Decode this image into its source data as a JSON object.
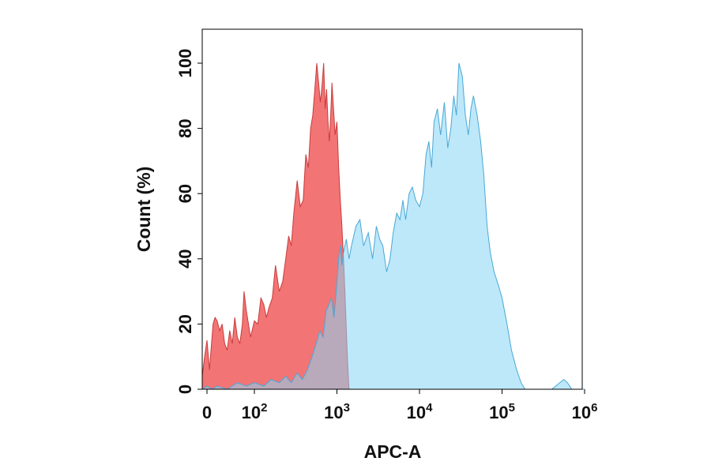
{
  "chart_data": {
    "type": "area",
    "xlabel": "APC-A",
    "ylabel": "Count  (%)",
    "x_scale": "biexponential",
    "xlim": [
      -10,
      1000000
    ],
    "ylim": [
      0,
      110
    ],
    "grid": false,
    "legend": "none",
    "x_ticks": [
      {
        "value": 0,
        "base": "0",
        "exp": ""
      },
      {
        "value": 100,
        "base": "10",
        "exp": "2"
      },
      {
        "value": 1000,
        "base": "10",
        "exp": "3"
      },
      {
        "value": 10000,
        "base": "10",
        "exp": "4"
      },
      {
        "value": 100000,
        "base": "10",
        "exp": "5"
      },
      {
        "value": 1000000,
        "base": "10",
        "exp": "6"
      }
    ],
    "y_ticks": [
      0,
      20,
      40,
      60,
      80,
      100
    ],
    "series": [
      {
        "color": "#f26d6d",
        "stroke": "#c83c3c",
        "x": [
          -10,
          -5,
          0,
          5,
          8,
          12,
          16,
          20,
          25,
          30,
          35,
          40,
          45,
          50,
          55,
          60,
          65,
          70,
          75,
          80,
          90,
          100,
          110,
          120,
          130,
          140,
          150,
          165,
          180,
          200,
          220,
          240,
          260,
          280,
          300,
          330,
          360,
          390,
          420,
          450,
          480,
          510,
          540,
          570,
          600,
          630,
          660,
          690,
          720,
          750,
          780,
          810,
          840,
          870,
          900,
          950,
          1000,
          1050,
          1100,
          1150,
          1200,
          1250,
          1300,
          1350,
          1400
        ],
        "y": [
          4,
          10,
          15,
          6,
          12,
          20,
          22,
          21,
          18,
          20,
          14,
          12,
          18,
          14,
          22,
          16,
          14,
          20,
          30,
          24,
          16,
          21,
          20,
          28,
          26,
          22,
          25,
          28,
          38,
          30,
          33,
          40,
          47,
          44,
          54,
          64,
          56,
          58,
          72,
          68,
          80,
          84,
          92,
          100,
          94,
          88,
          93,
          100,
          86,
          92,
          82,
          76,
          84,
          94,
          88,
          78,
          82,
          68,
          58,
          50,
          40,
          30,
          18,
          8,
          0
        ]
      },
      {
        "color": "#87d5f5",
        "stroke": "#48a8d6",
        "x": [
          -10,
          0,
          10,
          20,
          40,
          60,
          80,
          100,
          130,
          160,
          200,
          240,
          280,
          330,
          380,
          440,
          500,
          560,
          620,
          680,
          740,
          800,
          860,
          920,
          980,
          1050,
          1100,
          1150,
          1200,
          1300,
          1400,
          1500,
          1700,
          1900,
          2100,
          2400,
          2700,
          3000,
          3300,
          3600,
          4000,
          4400,
          4800,
          5300,
          5800,
          6300,
          6800,
          7500,
          8200,
          9000,
          10000,
          11000,
          12000,
          13000,
          14000,
          15000,
          16500,
          18000,
          20000,
          22000,
          24000,
          26000,
          28000,
          30000,
          33000,
          36000,
          39000,
          42000,
          45000,
          50000,
          55000,
          60000,
          66000,
          72000,
          80000,
          90000,
          100000,
          115000,
          130000,
          150000,
          170000,
          190000,
          220000,
          260000,
          320000,
          400000,
          500000,
          560000,
          620000,
          700000,
          780000,
          850000,
          1000000
        ],
        "y": [
          0,
          1,
          0,
          1,
          0,
          2,
          1,
          2,
          1,
          3,
          2,
          4,
          2,
          5,
          3,
          6,
          10,
          14,
          18,
          16,
          24,
          26,
          28,
          22,
          30,
          40,
          44,
          38,
          42,
          46,
          40,
          44,
          50,
          52,
          44,
          48,
          40,
          50,
          46,
          44,
          36,
          40,
          48,
          54,
          52,
          58,
          52,
          60,
          62,
          58,
          56,
          60,
          72,
          76,
          68,
          82,
          86,
          78,
          88,
          74,
          80,
          90,
          84,
          100,
          96,
          84,
          78,
          86,
          90,
          84,
          76,
          66,
          50,
          42,
          36,
          32,
          28,
          20,
          12,
          6,
          2,
          0,
          0,
          0,
          0,
          0,
          2,
          3,
          2,
          0,
          0,
          0,
          0
        ]
      }
    ]
  }
}
